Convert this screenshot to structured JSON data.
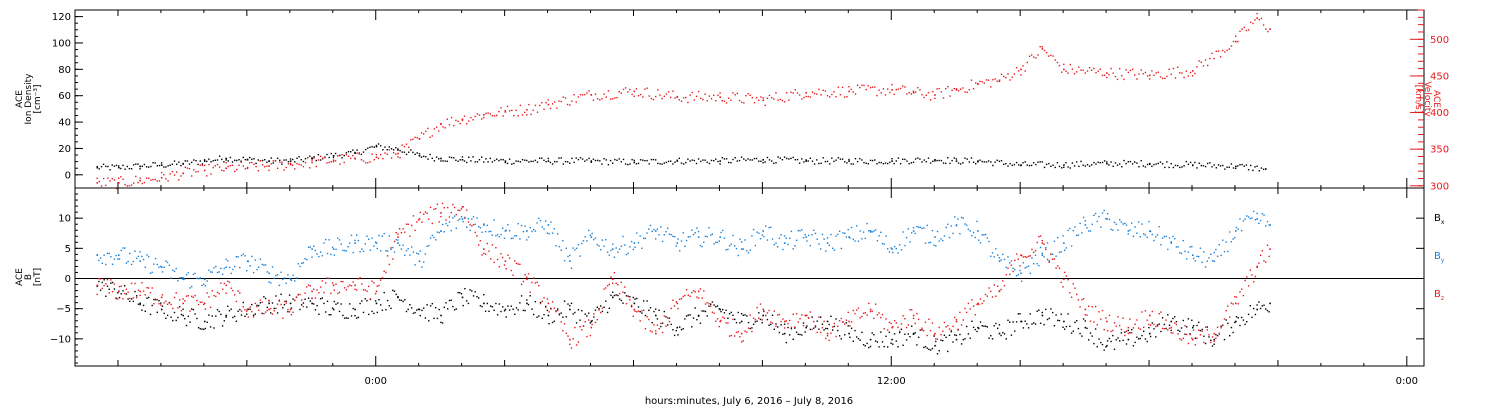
{
  "colors": {
    "black": "#000000",
    "red": "#e8191e",
    "blue": "#1a80d8"
  },
  "chart_data": [
    {
      "type": "scatter",
      "panel": "top",
      "ylabel_left": [
        "ACE",
        "Ion Density",
        "[cm⁻³]"
      ],
      "ylabel_right": [
        "ACE",
        "Velocity",
        "[km/s]"
      ],
      "left_axis": {
        "ylim": [
          -10,
          125
        ],
        "ticks": [
          0,
          20,
          40,
          60,
          80,
          100,
          120
        ],
        "tick_labels": [
          "0",
          "20",
          "40",
          "60",
          "80",
          "100",
          "120"
        ]
      },
      "right_axis": {
        "ylim": [
          297,
          540
        ],
        "ticks": [
          300,
          350,
          400,
          450,
          500
        ],
        "tick_labels": [
          "300",
          "350",
          "400",
          "450",
          "500"
        ]
      },
      "series": [
        {
          "axis": "left",
          "color": "#000000",
          "x": [
            -6.5,
            -6.0,
            -5.5,
            -5.0,
            -4.5,
            -4.0,
            -3.5,
            -3.0,
            -2.5,
            -2.0,
            -1.5,
            -1.0,
            -0.5,
            0.0,
            0.5,
            1.0,
            1.5,
            2.0,
            3.0,
            4.0,
            5.0,
            6.0,
            7.0,
            8.0,
            9.0,
            10.0,
            11.0,
            12.0,
            13.0,
            13.5,
            14.0,
            15.0,
            16.0,
            17.0,
            18.0,
            19.0,
            20.0,
            20.7
          ],
          "y": [
            6,
            6,
            7,
            8,
            9,
            11,
            13,
            12,
            11,
            11,
            13,
            15,
            17,
            22,
            20,
            15,
            13,
            12,
            11,
            11,
            11,
            10,
            11,
            11,
            12,
            11,
            11,
            11,
            12,
            11,
            11,
            8,
            8,
            9,
            9,
            8,
            7,
            5
          ]
        },
        {
          "axis": "right",
          "color": "#e8191e",
          "x": [
            -6.5,
            -6.0,
            -5.5,
            -5.0,
            -4.5,
            -4.0,
            -3.5,
            -3.0,
            -2.5,
            -2.0,
            -1.5,
            -1.0,
            -0.5,
            0.0,
            0.5,
            1.0,
            1.5,
            2.0,
            2.5,
            3.0,
            3.5,
            4.0,
            5.0,
            6.0,
            7.0,
            8.0,
            9.0,
            10.0,
            11.0,
            12.0,
            12.5,
            13.0,
            13.5,
            14.0,
            14.5,
            15.0,
            15.5,
            16.0,
            17.0,
            18.0,
            19.0,
            20.0,
            20.5,
            20.8
          ],
          "y": [
            305,
            305,
            308,
            312,
            318,
            322,
            325,
            326,
            328,
            330,
            333,
            336,
            338,
            340,
            345,
            365,
            385,
            392,
            398,
            402,
            405,
            412,
            425,
            430,
            422,
            422,
            418,
            428,
            430,
            432,
            428,
            425,
            432,
            440,
            445,
            460,
            488,
            460,
            455,
            452,
            458,
            498,
            530,
            515
          ]
        }
      ]
    },
    {
      "type": "scatter",
      "panel": "bottom",
      "ylabel_left": [
        "ACE",
        "B",
        "[nT]"
      ],
      "ylim": [
        -14.5,
        15
      ],
      "ticks": [
        -10,
        -5,
        0,
        5,
        10
      ],
      "tick_labels": [
        "−10",
        "−5",
        "0",
        "5",
        "10"
      ],
      "legend": [
        "Bx",
        "By",
        "Bz"
      ],
      "series": [
        {
          "name": "Bx",
          "color": "#000000",
          "x": [
            -6.5,
            -6.0,
            -5.5,
            -5.0,
            -4.5,
            -4.0,
            -3.5,
            -3.0,
            -2.5,
            -2.0,
            -1.5,
            -1.0,
            -0.5,
            0.0,
            0.5,
            1.0,
            1.5,
            2.0,
            2.5,
            3.0,
            3.5,
            4.0,
            4.5,
            5.0,
            5.5,
            6.0,
            6.5,
            7.0,
            7.5,
            8.0,
            8.5,
            9.0,
            9.5,
            10.0,
            10.5,
            11.0,
            11.5,
            12.0,
            12.5,
            13.0,
            13.5,
            14.0,
            14.5,
            15.0,
            15.5,
            16.0,
            16.5,
            17.0,
            17.5,
            18.0,
            18.5,
            19.0,
            19.5,
            20.0,
            20.5,
            20.8
          ],
          "y": [
            -1,
            -2,
            -4,
            -5,
            -6,
            -7,
            -6,
            -5,
            -4,
            -4,
            -4,
            -5,
            -5,
            -4,
            -3,
            -5,
            -6,
            -3,
            -4,
            -5,
            -4,
            -6,
            -5,
            -7,
            -3,
            -4,
            -6,
            -8,
            -6,
            -5,
            -7,
            -6,
            -9,
            -8,
            -7,
            -9,
            -10,
            -10,
            -9,
            -11,
            -10,
            -8,
            -9,
            -7,
            -6,
            -7,
            -8,
            -11,
            -10,
            -9,
            -7,
            -8,
            -10,
            -7,
            -5,
            -4
          ]
        },
        {
          "name": "By",
          "color": "#1a80d8",
          "x": [
            -6.5,
            -6.0,
            -5.5,
            -5.0,
            -4.5,
            -4.0,
            -3.5,
            -3.0,
            -2.5,
            -2.0,
            -1.5,
            -1.0,
            -0.5,
            0.0,
            0.5,
            1.0,
            1.5,
            2.0,
            2.5,
            3.0,
            3.5,
            4.0,
            4.5,
            5.0,
            5.5,
            6.0,
            6.5,
            7.0,
            7.5,
            8.0,
            8.5,
            9.0,
            9.5,
            10.0,
            10.5,
            11.0,
            11.5,
            12.0,
            12.5,
            13.0,
            13.5,
            14.0,
            14.5,
            15.0,
            15.5,
            16.0,
            16.5,
            17.0,
            17.5,
            18.0,
            18.5,
            19.0,
            19.5,
            20.0,
            20.5,
            20.8
          ],
          "y": [
            4,
            4,
            3,
            2,
            0,
            0,
            2,
            3,
            1,
            0,
            5,
            5,
            6,
            6,
            6,
            3,
            8,
            10,
            9,
            8,
            8,
            9,
            3,
            7,
            5,
            6,
            8,
            6,
            7,
            7,
            5,
            8,
            6,
            7,
            6,
            7,
            8,
            5,
            8,
            7,
            9,
            8,
            3,
            1,
            4,
            6,
            9,
            10,
            8,
            8,
            6,
            4,
            3,
            8,
            10,
            9
          ]
        },
        {
          "name": "Bz",
          "color": "#e8191e",
          "x": [
            -6.5,
            -6.0,
            -5.5,
            -5.0,
            -4.5,
            -4.0,
            -3.5,
            -3.0,
            -2.5,
            -2.0,
            -1.5,
            -1.0,
            -0.5,
            0.0,
            0.5,
            1.0,
            1.5,
            2.0,
            2.5,
            3.0,
            3.5,
            4.0,
            4.5,
            5.0,
            5.5,
            6.0,
            6.5,
            7.0,
            7.5,
            8.0,
            8.5,
            9.0,
            9.5,
            10.0,
            10.5,
            11.0,
            11.5,
            12.0,
            12.5,
            13.0,
            13.5,
            14.0,
            14.5,
            15.0,
            15.5,
            16.0,
            16.5,
            17.0,
            17.5,
            18.0,
            18.5,
            19.0,
            19.5,
            20.0,
            20.5,
            20.8
          ],
          "y": [
            -1,
            -2,
            -2,
            -3,
            -4,
            -4,
            -1,
            -5,
            -5,
            -5,
            -2,
            -1,
            -1,
            -2,
            7,
            10,
            11,
            12,
            5,
            3,
            0,
            -4,
            -10,
            -8,
            0,
            -5,
            -9,
            -4,
            -2,
            -7,
            -9,
            -5,
            -7,
            -6,
            -9,
            -7,
            -5,
            -8,
            -6,
            -9,
            -7,
            -4,
            -2,
            4,
            6,
            0,
            -5,
            -7,
            -8,
            -6,
            -8,
            -10,
            -9,
            -4,
            2,
            5
          ]
        }
      ]
    }
  ],
  "x_axis": {
    "xlim": [
      -7,
      24.4
    ],
    "major_ticks": [
      0,
      12,
      24
    ],
    "tick_labels": [
      "0:00",
      "12:00",
      "0:00"
    ],
    "xlabel": "hours:minutes,  July  6, 2016 – July  8, 2016"
  }
}
